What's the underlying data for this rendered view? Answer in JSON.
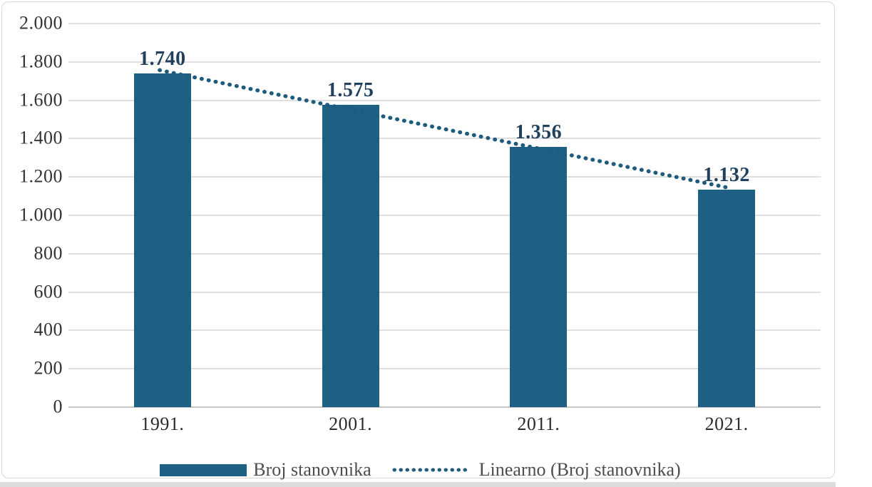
{
  "chart_data": {
    "type": "bar",
    "categories": [
      "1991.",
      "2001.",
      "2011.",
      "2021."
    ],
    "series": [
      {
        "name": "Broj stanovnika",
        "values": [
          1740,
          1575,
          1356,
          1132
        ]
      }
    ],
    "data_labels": [
      "1.740",
      "1.575",
      "1.356",
      "1.132"
    ],
    "y_ticks": [
      {
        "v": 2000,
        "label": "2.000"
      },
      {
        "v": 1800,
        "label": "1.800"
      },
      {
        "v": 1600,
        "label": "1.600"
      },
      {
        "v": 1400,
        "label": "1.400"
      },
      {
        "v": 1200,
        "label": "1.200"
      },
      {
        "v": 1000,
        "label": "1.000"
      },
      {
        "v": 800,
        "label": "800"
      },
      {
        "v": 600,
        "label": "600"
      },
      {
        "v": 400,
        "label": "400"
      },
      {
        "v": 200,
        "label": "200"
      },
      {
        "v": 0,
        "label": "0"
      }
    ],
    "ylim": [
      0,
      2000
    ],
    "grid": true,
    "legend_position": "bottom",
    "trendline": {
      "label": "Linearno (Broj stanovnika)",
      "style": "dotted",
      "start_value": 1757,
      "end_value": 1144
    },
    "colors": {
      "bar": "#1E6084",
      "trendline": "#1D5C7E",
      "data_label": "#20405E",
      "gridline": "#DFDFDF"
    }
  }
}
